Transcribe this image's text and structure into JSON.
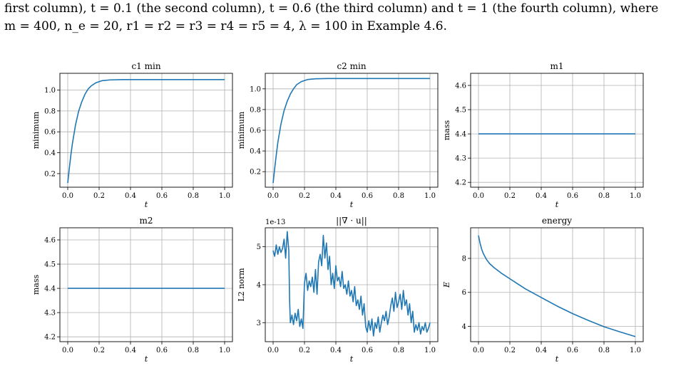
{
  "caption": {
    "line1": "first column), t = 0.1 (the second column), t = 0.6 (the third column) and t = 1 (the fourth column), where",
    "line2": "m = 400,  n_e = 20,  r1 = r2 = r3 = r4 = r5 = 4,  λ = 100 in Example 4.6."
  },
  "chart_data": [
    {
      "type": "line",
      "title": "c1 min",
      "xlabel": "t",
      "ylabel": "minimum",
      "xlim": [
        0,
        1
      ],
      "ylim": [
        0.07,
        1.16
      ],
      "grid": true,
      "xticks": [
        "0.0",
        "0.2",
        "0.4",
        "0.6",
        "0.8",
        "1.0"
      ],
      "yticks": [
        "0.2",
        "0.4",
        "0.6",
        "0.8",
        "1.0"
      ],
      "series": [
        {
          "color": "#1f77b4",
          "x": [
            0,
            0.01,
            0.02,
            0.03,
            0.05,
            0.07,
            0.09,
            0.11,
            0.13,
            0.15,
            0.18,
            0.22,
            0.27,
            0.35,
            0.5,
            0.7,
            1.0
          ],
          "y": [
            0.11,
            0.25,
            0.38,
            0.49,
            0.67,
            0.8,
            0.89,
            0.96,
            1.01,
            1.04,
            1.07,
            1.09,
            1.097,
            1.1,
            1.1,
            1.1,
            1.1
          ]
        }
      ]
    },
    {
      "type": "line",
      "title": "c2 min",
      "xlabel": "t",
      "ylabel": "minimum",
      "xlim": [
        0,
        1
      ],
      "ylim": [
        0.05,
        1.15
      ],
      "grid": true,
      "xticks": [
        "0.0",
        "0.2",
        "0.4",
        "0.6",
        "0.8",
        "1.0"
      ],
      "yticks": [
        "0.2",
        "0.4",
        "0.6",
        "0.8",
        "1.0"
      ],
      "series": [
        {
          "color": "#1f77b4",
          "x": [
            0,
            0.01,
            0.02,
            0.03,
            0.05,
            0.07,
            0.09,
            0.11,
            0.13,
            0.15,
            0.18,
            0.22,
            0.27,
            0.35,
            0.5,
            0.7,
            1.0
          ],
          "y": [
            0.09,
            0.23,
            0.36,
            0.48,
            0.66,
            0.79,
            0.88,
            0.95,
            1.0,
            1.04,
            1.07,
            1.09,
            1.097,
            1.1,
            1.1,
            1.1,
            1.1
          ]
        }
      ]
    },
    {
      "type": "line",
      "title": "m1",
      "xlabel": "t",
      "ylabel": "mass",
      "xlim": [
        0,
        1
      ],
      "ylim": [
        4.18,
        4.65
      ],
      "grid": true,
      "xticks": [
        "0.0",
        "0.2",
        "0.4",
        "0.6",
        "0.8",
        "1.0"
      ],
      "yticks": [
        "4.2",
        "4.3",
        "4.4",
        "4.5",
        "4.6"
      ],
      "series": [
        {
          "color": "#1f77b4",
          "x": [
            0,
            1
          ],
          "y": [
            4.4,
            4.4
          ]
        }
      ]
    },
    {
      "type": "line",
      "title": "m2",
      "xlabel": "t",
      "ylabel": "mass",
      "xlim": [
        0,
        1
      ],
      "ylim": [
        4.18,
        4.65
      ],
      "grid": true,
      "xticks": [
        "0.0",
        "0.2",
        "0.4",
        "0.6",
        "0.8",
        "1.0"
      ],
      "yticks": [
        "4.2",
        "4.3",
        "4.4",
        "4.5",
        "4.6"
      ],
      "series": [
        {
          "color": "#1f77b4",
          "x": [
            0,
            1
          ],
          "y": [
            4.4,
            4.4
          ]
        }
      ]
    },
    {
      "type": "line",
      "title": "||∇ · u||",
      "xlabel": "t",
      "ylabel": "L2 norm",
      "offset": "1e-13",
      "xlim": [
        0,
        1
      ],
      "ylim": [
        2.5,
        5.5
      ],
      "grid": true,
      "xticks": [
        "0.0",
        "0.2",
        "0.4",
        "0.6",
        "0.8",
        "1.0"
      ],
      "yticks": [
        "3",
        "4",
        "5"
      ],
      "series": [
        {
          "color": "#1f77b4",
          "x": [
            0,
            0.01,
            0.02,
            0.03,
            0.04,
            0.05,
            0.06,
            0.07,
            0.08,
            0.09,
            0.1,
            0.105,
            0.11,
            0.12,
            0.13,
            0.14,
            0.15,
            0.16,
            0.17,
            0.18,
            0.19,
            0.2,
            0.21,
            0.22,
            0.23,
            0.24,
            0.25,
            0.26,
            0.27,
            0.28,
            0.29,
            0.3,
            0.31,
            0.32,
            0.33,
            0.34,
            0.35,
            0.36,
            0.37,
            0.38,
            0.39,
            0.4,
            0.41,
            0.42,
            0.43,
            0.44,
            0.45,
            0.46,
            0.47,
            0.48,
            0.49,
            0.5,
            0.51,
            0.52,
            0.53,
            0.54,
            0.55,
            0.56,
            0.57,
            0.58,
            0.59,
            0.6,
            0.61,
            0.62,
            0.63,
            0.64,
            0.65,
            0.66,
            0.67,
            0.68,
            0.69,
            0.7,
            0.71,
            0.72,
            0.73,
            0.74,
            0.75,
            0.76,
            0.77,
            0.78,
            0.79,
            0.8,
            0.81,
            0.82,
            0.83,
            0.84,
            0.85,
            0.86,
            0.87,
            0.88,
            0.89,
            0.9,
            0.91,
            0.92,
            0.93,
            0.94,
            0.95,
            0.96,
            0.97,
            0.98,
            0.99,
            1.0
          ],
          "y": [
            4.9,
            4.75,
            5.05,
            4.8,
            5.0,
            4.85,
            4.95,
            5.2,
            4.7,
            5.4,
            4.9,
            3.6,
            3.0,
            3.2,
            2.95,
            3.25,
            3.05,
            3.35,
            2.9,
            3.1,
            2.85,
            4.05,
            4.3,
            3.85,
            4.1,
            3.95,
            4.2,
            3.8,
            4.4,
            3.75,
            4.6,
            4.8,
            4.5,
            5.3,
            4.7,
            5.1,
            4.4,
            4.75,
            4.0,
            4.3,
            3.9,
            4.5,
            4.1,
            4.2,
            3.95,
            4.35,
            3.9,
            4.0,
            3.75,
            4.1,
            3.7,
            3.85,
            3.55,
            3.95,
            3.45,
            3.6,
            3.35,
            3.7,
            3.2,
            3.5,
            2.9,
            2.75,
            3.05,
            2.8,
            3.1,
            2.65,
            3.0,
            2.85,
            3.15,
            2.75,
            3.0,
            3.2,
            3.05,
            3.3,
            2.95,
            3.15,
            3.45,
            3.65,
            3.3,
            3.8,
            3.4,
            3.55,
            3.75,
            3.35,
            3.85,
            3.45,
            3.6,
            3.2,
            3.5,
            3.0,
            3.3,
            2.75,
            2.95,
            2.8,
            3.0,
            2.7,
            2.9,
            2.8,
            3.0,
            2.75,
            2.85,
            3.0
          ]
        }
      ]
    },
    {
      "type": "line",
      "title": "energy",
      "xlabel": "t",
      "ylabel": "E",
      "xlim": [
        0,
        1
      ],
      "ylim": [
        3.1,
        9.8
      ],
      "grid": true,
      "xticks": [
        "0.0",
        "0.2",
        "0.4",
        "0.6",
        "0.8",
        "1.0"
      ],
      "yticks": [
        "4",
        "6",
        "8"
      ],
      "series": [
        {
          "color": "#1f77b4",
          "x": [
            0,
            0.01,
            0.02,
            0.03,
            0.05,
            0.07,
            0.1,
            0.15,
            0.2,
            0.25,
            0.3,
            0.35,
            0.4,
            0.5,
            0.6,
            0.7,
            0.8,
            0.9,
            1.0
          ],
          "y": [
            9.35,
            8.9,
            8.55,
            8.3,
            7.95,
            7.7,
            7.45,
            7.1,
            6.8,
            6.5,
            6.2,
            5.95,
            5.7,
            5.2,
            4.75,
            4.35,
            3.98,
            3.68,
            3.4
          ]
        }
      ]
    }
  ]
}
